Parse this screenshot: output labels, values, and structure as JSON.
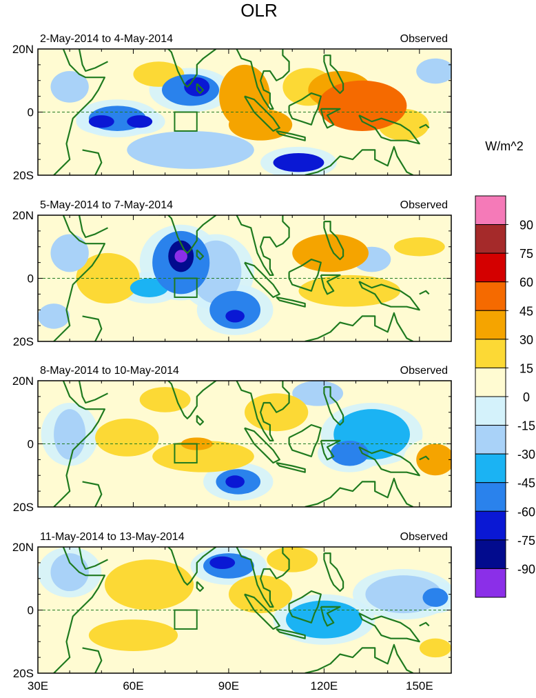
{
  "title": "OLR",
  "unit_label": "W/m^2",
  "panels": [
    {
      "period": "2-May-2014 to 4-May-2014",
      "tag": "Observed"
    },
    {
      "period": "5-May-2014 to 7-May-2014",
      "tag": "Observed"
    },
    {
      "period": "8-May-2014 to 10-May-2014",
      "tag": "Observed"
    },
    {
      "period": "11-May-2014 to 13-May-2014",
      "tag": "Observed"
    }
  ],
  "axes": {
    "lon_ticks": [
      "30E",
      "60E",
      "90E",
      "120E",
      "150E"
    ],
    "lat_ticks": [
      "20N",
      "0",
      "20S"
    ]
  },
  "colorbar": {
    "labels": [
      "90",
      "75",
      "60",
      "45",
      "30",
      "15",
      "0",
      "-15",
      "-30",
      "-45",
      "-60",
      "-75",
      "-90"
    ],
    "colors": [
      "#f57ab8",
      "#a52a2a",
      "#d40000",
      "#f56a00",
      "#f5a400",
      "#fcd935",
      "#fffbd2",
      "#d4f2fb",
      "#a9d2f8",
      "#1bb3f3",
      "#2a82ec",
      "#0a18d4",
      "#020b8e",
      "#8b2fe8"
    ]
  },
  "maps": [
    {
      "blobs": [
        {
          "lon": 78,
          "lat": 7,
          "rx": 9,
          "ry": 5,
          "v": -50
        },
        {
          "lon": 80,
          "lat": 8,
          "rx": 4,
          "ry": 3,
          "v": -75
        },
        {
          "lon": 55,
          "lat": -2,
          "rx": 9,
          "ry": 4,
          "v": -55
        },
        {
          "lon": 50,
          "lat": -3,
          "rx": 4,
          "ry": 2,
          "v": -75
        },
        {
          "lon": 62,
          "lat": -3,
          "rx": 4,
          "ry": 2,
          "v": -72
        },
        {
          "lon": 112,
          "lat": -16,
          "rx": 8,
          "ry": 3,
          "v": -62
        },
        {
          "lon": 78,
          "lat": -12,
          "rx": 20,
          "ry": 6,
          "v": -18
        },
        {
          "lon": 68,
          "lat": 12,
          "rx": 8,
          "ry": 4,
          "v": 20
        },
        {
          "lon": 95,
          "lat": 5,
          "rx": 8,
          "ry": 10,
          "v": 35
        },
        {
          "lon": 100,
          "lat": -4,
          "rx": 10,
          "ry": 5,
          "v": 30
        },
        {
          "lon": 132,
          "lat": 2,
          "rx": 14,
          "ry": 8,
          "v": 45
        },
        {
          "lon": 125,
          "lat": 7,
          "rx": 10,
          "ry": 6,
          "v": 30
        },
        {
          "lon": 145,
          "lat": -4,
          "rx": 8,
          "ry": 5,
          "v": 20
        },
        {
          "lon": 115,
          "lat": 8,
          "rx": 8,
          "ry": 6,
          "v": 15
        },
        {
          "lon": 40,
          "lat": 8,
          "rx": 6,
          "ry": 5,
          "v": -18
        },
        {
          "lon": 155,
          "lat": 13,
          "rx": 6,
          "ry": 4,
          "v": -18
        }
      ]
    },
    {
      "blobs": [
        {
          "lon": 75,
          "lat": 5,
          "rx": 9,
          "ry": 10,
          "v": -55
        },
        {
          "lon": 75,
          "lat": 7,
          "rx": 4,
          "ry": 5,
          "v": -80
        },
        {
          "lon": 75,
          "lat": 7,
          "rx": 2,
          "ry": 2,
          "v": -95
        },
        {
          "lon": 92,
          "lat": -10,
          "rx": 8,
          "ry": 6,
          "v": -55
        },
        {
          "lon": 92,
          "lat": -12,
          "rx": 3,
          "ry": 2,
          "v": -75
        },
        {
          "lon": 86,
          "lat": 2,
          "rx": 8,
          "ry": 10,
          "v": -25
        },
        {
          "lon": 65,
          "lat": -3,
          "rx": 6,
          "ry": 3,
          "v": -40
        },
        {
          "lon": 122,
          "lat": 8,
          "rx": 12,
          "ry": 6,
          "v": 30
        },
        {
          "lon": 128,
          "lat": -4,
          "rx": 16,
          "ry": 5,
          "v": 25
        },
        {
          "lon": 52,
          "lat": 0,
          "rx": 10,
          "ry": 8,
          "v": 18
        },
        {
          "lon": 150,
          "lat": 10,
          "rx": 8,
          "ry": 3,
          "v": 20
        },
        {
          "lon": 135,
          "lat": 6,
          "rx": 6,
          "ry": 4,
          "v": -20
        },
        {
          "lon": 40,
          "lat": 8,
          "rx": 6,
          "ry": 6,
          "v": -20
        },
        {
          "lon": 35,
          "lat": -12,
          "rx": 5,
          "ry": 4,
          "v": -18
        }
      ]
    },
    {
      "blobs": [
        {
          "lon": 82,
          "lat": -4,
          "rx": 16,
          "ry": 5,
          "v": 25
        },
        {
          "lon": 80,
          "lat": 0,
          "rx": 5,
          "ry": 2,
          "v": 40
        },
        {
          "lon": 58,
          "lat": 2,
          "rx": 10,
          "ry": 6,
          "v": 20
        },
        {
          "lon": 93,
          "lat": -12,
          "rx": 7,
          "ry": 4,
          "v": -55
        },
        {
          "lon": 92,
          "lat": -12,
          "rx": 3,
          "ry": 2,
          "v": -75
        },
        {
          "lon": 135,
          "lat": 3,
          "rx": 12,
          "ry": 8,
          "v": -40
        },
        {
          "lon": 128,
          "lat": -3,
          "rx": 6,
          "ry": 4,
          "v": -55
        },
        {
          "lon": 155,
          "lat": -5,
          "rx": 6,
          "ry": 5,
          "v": 40
        },
        {
          "lon": 40,
          "lat": 3,
          "rx": 5,
          "ry": 8,
          "v": -25
        },
        {
          "lon": 105,
          "lat": 10,
          "rx": 10,
          "ry": 6,
          "v": 22
        },
        {
          "lon": 118,
          "lat": 16,
          "rx": 8,
          "ry": 4,
          "v": -18
        },
        {
          "lon": 70,
          "lat": 14,
          "rx": 8,
          "ry": 4,
          "v": 15
        }
      ]
    },
    {
      "blobs": [
        {
          "lon": 90,
          "lat": 14,
          "rx": 8,
          "ry": 4,
          "v": -55
        },
        {
          "lon": 88,
          "lat": 15,
          "rx": 4,
          "ry": 2,
          "v": -72
        },
        {
          "lon": 65,
          "lat": 8,
          "rx": 14,
          "ry": 8,
          "v": 25
        },
        {
          "lon": 120,
          "lat": -3,
          "rx": 12,
          "ry": 6,
          "v": -45
        },
        {
          "lon": 145,
          "lat": 5,
          "rx": 12,
          "ry": 6,
          "v": -30
        },
        {
          "lon": 155,
          "lat": 4,
          "rx": 4,
          "ry": 3,
          "v": -60
        },
        {
          "lon": 100,
          "lat": 5,
          "rx": 10,
          "ry": 6,
          "v": 18
        },
        {
          "lon": 40,
          "lat": 12,
          "rx": 6,
          "ry": 6,
          "v": -25
        },
        {
          "lon": 110,
          "lat": 16,
          "rx": 8,
          "ry": 4,
          "v": 20
        },
        {
          "lon": 155,
          "lat": -12,
          "rx": 5,
          "ry": 3,
          "v": 25
        },
        {
          "lon": 60,
          "lat": -8,
          "rx": 14,
          "ry": 5,
          "v": 15
        }
      ]
    }
  ]
}
